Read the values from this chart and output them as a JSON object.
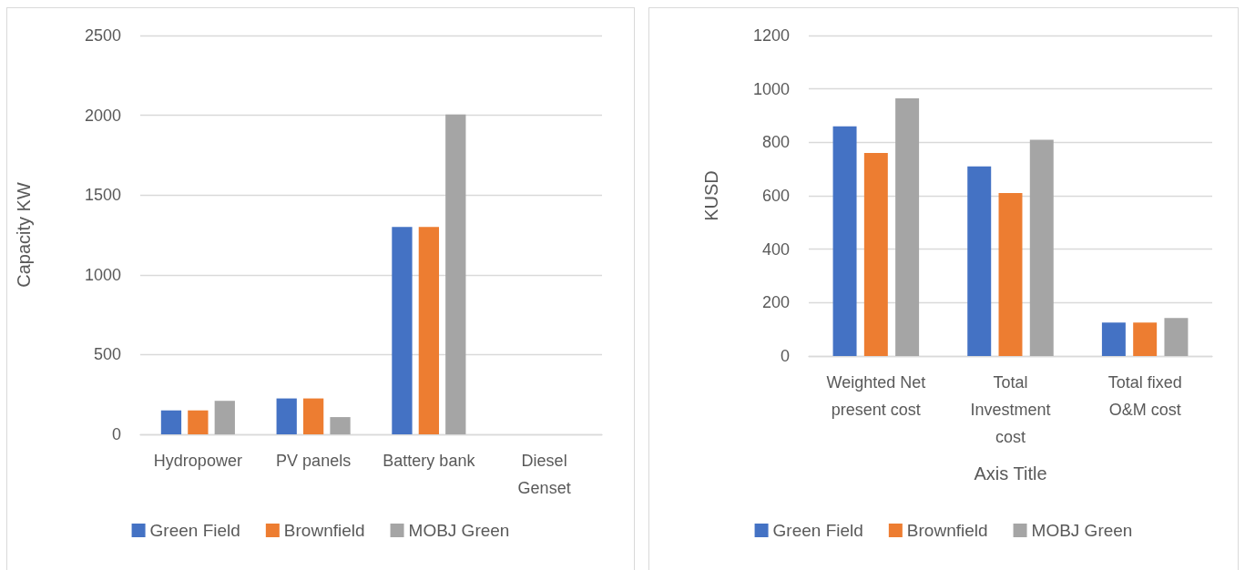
{
  "chart_data": [
    {
      "type": "bar",
      "categories": [
        "Hydropower",
        "PV panels",
        "Battery bank",
        "Diesel Genset"
      ],
      "series": [
        {
          "name": "Green Field",
          "color": "#4472c4",
          "values": [
            150,
            225,
            1300,
            0
          ]
        },
        {
          "name": "Brownfield",
          "color": "#ed7d31",
          "values": [
            150,
            225,
            1300,
            0
          ]
        },
        {
          "name": "MOBJ Green",
          "color": "#a5a5a5",
          "values": [
            210,
            108,
            2005,
            0
          ]
        }
      ],
      "ylabel": "Capacity KW",
      "ylim": [
        0,
        2500
      ],
      "yticks": [
        0,
        500,
        1000,
        1500,
        2000,
        2500
      ],
      "grid": "y",
      "legend": "bottom"
    },
    {
      "type": "bar",
      "categories": [
        "Weighted Net present cost",
        "Total Investment cost",
        "Total fixed O&M cost"
      ],
      "series": [
        {
          "name": "Green Field",
          "color": "#4472c4",
          "values": [
            860,
            710,
            125
          ]
        },
        {
          "name": "Brownfield",
          "color": "#ed7d31",
          "values": [
            760,
            610,
            125
          ]
        },
        {
          "name": "MOBJ Green",
          "color": "#a5a5a5",
          "values": [
            965,
            810,
            142
          ]
        }
      ],
      "xlabel": "Axis Title",
      "ylabel": "KUSD",
      "ylim": [
        0,
        1200
      ],
      "yticks": [
        0,
        200,
        400,
        600,
        800,
        1000,
        1200
      ],
      "grid": "y",
      "legend": "bottom"
    }
  ]
}
